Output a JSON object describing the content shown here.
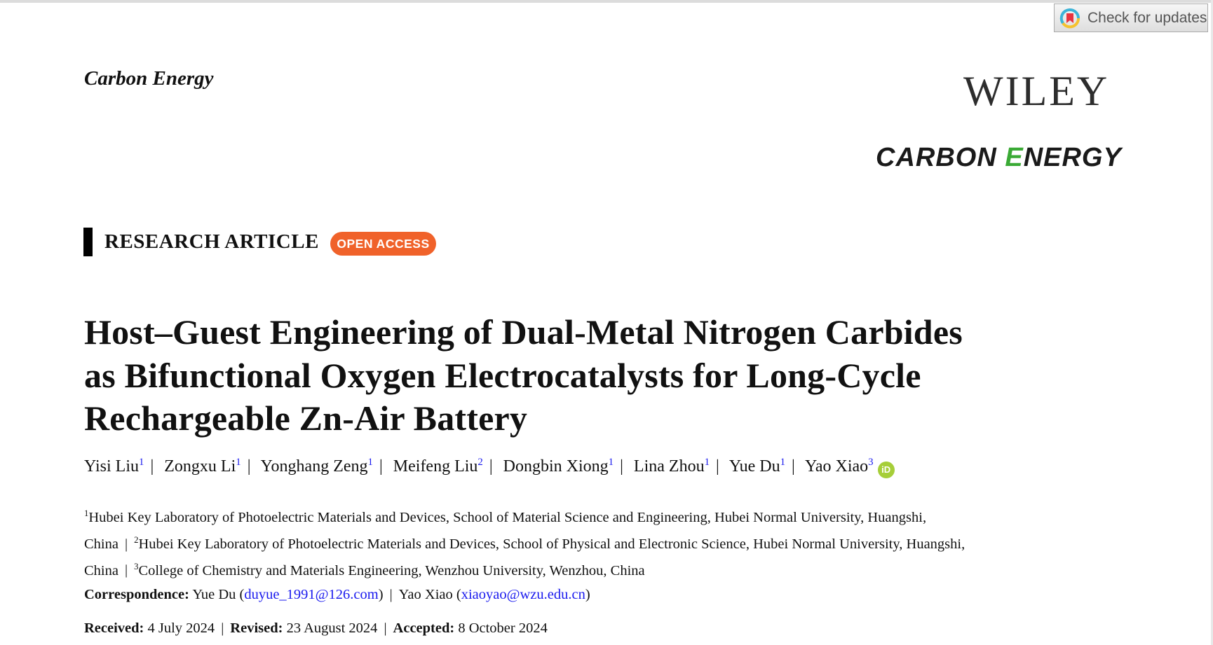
{
  "check_updates": {
    "label": "Check for updates",
    "icon": "crossmark-icon"
  },
  "header": {
    "journal_name": "Carbon Energy",
    "publisher_logo": "WILEY",
    "journal_logo": {
      "part1": "CARBON ",
      "part2_green": "E",
      "part3": "NERGY"
    }
  },
  "article_type": "RESEARCH ARTICLE",
  "access_badge": "OPEN ACCESS",
  "colors": {
    "open_access": "#f0622a",
    "logo_green": "#3aaa35",
    "link": "#1a1aee",
    "orcid": "#a6ce39"
  },
  "title_lines": [
    "Host–Guest Engineering of Dual-Metal Nitrogen Carbides",
    "as Bifunctional Oxygen Electrocatalysts for Long-Cycle",
    "Rechargeable Zn-Air Battery"
  ],
  "authors": [
    {
      "name": "Yisi Liu",
      "aff": "1"
    },
    {
      "name": "Zongxu Li",
      "aff": "1"
    },
    {
      "name": "Yonghang Zeng",
      "aff": "1"
    },
    {
      "name": "Meifeng Liu",
      "aff": "2"
    },
    {
      "name": "Dongbin Xiong",
      "aff": "1"
    },
    {
      "name": "Lina Zhou",
      "aff": "1"
    },
    {
      "name": "Yue Du",
      "aff": "1"
    },
    {
      "name": "Yao Xiao",
      "aff": "3"
    }
  ],
  "orcid_label": "iD",
  "separator": "|",
  "affiliations": {
    "line1": {
      "num": "1",
      "text": "Hubei Key Laboratory of Photoelectric Materials and Devices, School of Material Science and Engineering, Hubei Normal University, Huangshi,"
    },
    "line2": {
      "pre": "China",
      "num": "2",
      "text": "Hubei Key Laboratory of Photoelectric Materials and Devices, School of Physical and Electronic Science, Hubei Normal University, Huangshi,"
    },
    "line3": {
      "pre": "China",
      "num": "3",
      "text": "College of Chemistry and Materials Engineering, Wenzhou University, Wenzhou, China"
    }
  },
  "correspondence": {
    "label": "Correspondence:",
    "contacts": [
      {
        "name": "Yue Du",
        "email": "duyue_1991@126.com"
      },
      {
        "name": "Yao Xiao",
        "email": "xiaoyao@wzu.edu.cn"
      }
    ]
  },
  "dates": {
    "received_label": "Received:",
    "received": "4 July 2024",
    "revised_label": "Revised:",
    "revised": "23 August 2024",
    "accepted_label": "Accepted:",
    "accepted": "8 October 2024"
  }
}
